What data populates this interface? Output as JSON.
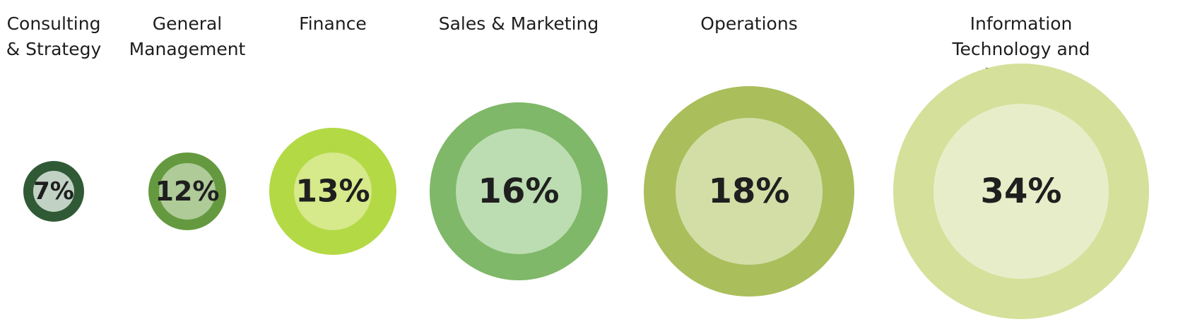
{
  "chart_data": {
    "type": "bubble",
    "unit": "%",
    "categories": [
      "Consulting\n& Strategy",
      "General\nManagement",
      "Finance",
      "Sales & Marketing",
      "Operations",
      "Information Technology and Analytics"
    ],
    "values": [
      7,
      12,
      13,
      16,
      18,
      34
    ],
    "value_labels": [
      "7%",
      "12%",
      "13%",
      "16%",
      "18%",
      "34%"
    ],
    "colors": [
      {
        "outer": "#305a35",
        "inner": "#c1d2c5"
      },
      {
        "outer": "#65993f",
        "inner": "#aecb98"
      },
      {
        "outer": "#b3d945",
        "inner": "#d6e98b"
      },
      {
        "outer": "#7fb868",
        "inner": "#bcdcb1"
      },
      {
        "outer": "#aabe5b",
        "inner": "#d3dea7"
      },
      {
        "outer": "#d5e09a",
        "inner": "#e8edc9"
      }
    ]
  }
}
